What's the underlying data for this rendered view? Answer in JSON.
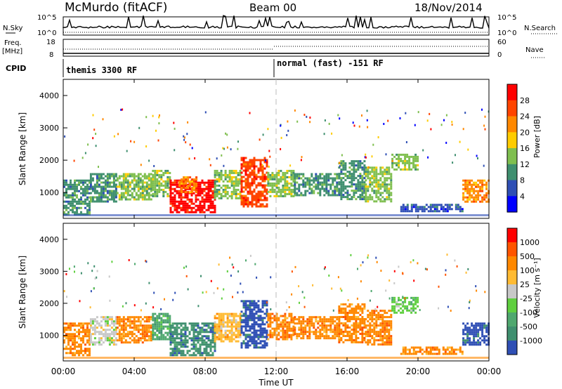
{
  "header": {
    "station": "McMurdo (fitACF)",
    "beam": "Beam 00",
    "date": "18/Nov/2014"
  },
  "top_panels": {
    "nsky_label": "N.Sky",
    "nsky_ticks": [
      "10^5",
      "10^0"
    ],
    "nsearch_label": "N.Search",
    "freq_label": "Freq.",
    "freq_unit": "[MHz]",
    "freq_ticks": [
      "18",
      "8"
    ],
    "nave_label": "Nave",
    "nave_ticks": [
      "60",
      "0"
    ],
    "cpid_label": "CPID",
    "cpid_modes": [
      {
        "label": "themis 3300 RF",
        "start_hour": 0
      },
      {
        "label": "normal (fast) -151 RF",
        "start_hour": 12
      }
    ]
  },
  "colors": {
    "power": [
      "#0000ff",
      "#2f4fb5",
      "#3f8f6f",
      "#7fbf4f",
      "#ffcc00",
      "#ff8800",
      "#ff4400",
      "#ff0000"
    ],
    "velocity": [
      "#2f4fb5",
      "#3f8f6f",
      "#4fa86f",
      "#5fcf3f",
      "#c8c8c8",
      "#ffbb33",
      "#ff8800",
      "#ff5500",
      "#ff0000"
    ]
  },
  "chart_data": [
    {
      "type": "heatmap",
      "name": "power",
      "xlabel": "Time UT",
      "ylabel": "Slant Range [km]",
      "x_ticks": [
        "00:00",
        "04:00",
        "08:00",
        "12:00",
        "16:00",
        "20:00",
        "00:00"
      ],
      "y_ticks": [
        "1000",
        "2000",
        "3000",
        "4000"
      ],
      "xlim": [
        0,
        24
      ],
      "ylim": [
        200,
        4500
      ],
      "colorbar_label": "Power [dB]",
      "colorbar_ticks": [
        "28",
        "24",
        "20",
        "16",
        "12",
        "8",
        "4"
      ],
      "regions": [
        {
          "t0": 0.0,
          "t1": 1.5,
          "r0": 350,
          "r1": 1400,
          "level": 2
        },
        {
          "t0": 1.5,
          "t1": 3.0,
          "r0": 700,
          "r1": 1600,
          "level": 2
        },
        {
          "t0": 3.0,
          "t1": 5.0,
          "r0": 800,
          "r1": 1600,
          "level": 3
        },
        {
          "t0": 5.0,
          "t1": 6.0,
          "r0": 900,
          "r1": 1700,
          "level": 3
        },
        {
          "t0": 6.0,
          "t1": 8.5,
          "r0": 400,
          "r1": 1400,
          "level": 7
        },
        {
          "t0": 6.5,
          "t1": 7.5,
          "r0": 1000,
          "r1": 1500,
          "level": 5
        },
        {
          "t0": 8.5,
          "t1": 10.0,
          "r0": 800,
          "r1": 1700,
          "level": 3
        },
        {
          "t0": 10.0,
          "t1": 11.5,
          "r0": 600,
          "r1": 2100,
          "level": 6
        },
        {
          "t0": 11.5,
          "t1": 13.0,
          "r0": 900,
          "r1": 1700,
          "level": 3
        },
        {
          "t0": 13.0,
          "t1": 15.5,
          "r0": 900,
          "r1": 1600,
          "level": 2
        },
        {
          "t0": 15.5,
          "t1": 17.0,
          "r0": 800,
          "r1": 2000,
          "level": 2
        },
        {
          "t0": 17.0,
          "t1": 18.5,
          "r0": 700,
          "r1": 1800,
          "level": 3
        },
        {
          "t0": 18.5,
          "t1": 20.0,
          "r0": 1700,
          "r1": 2200,
          "level": 3
        },
        {
          "t0": 19.0,
          "t1": 22.5,
          "r0": 450,
          "r1": 650,
          "level": 1
        },
        {
          "t0": 22.5,
          "t1": 24.0,
          "r0": 700,
          "r1": 1400,
          "level": 5
        }
      ]
    },
    {
      "type": "heatmap",
      "name": "velocity",
      "xlabel": "Time UT",
      "ylabel": "Slant Range [km]",
      "x_ticks": [
        "00:00",
        "04:00",
        "08:00",
        "12:00",
        "16:00",
        "20:00",
        "00:00"
      ],
      "y_ticks": [
        "1000",
        "2000",
        "3000",
        "4000"
      ],
      "xlim": [
        0,
        24
      ],
      "ylim": [
        200,
        4500
      ],
      "colorbar_label": "Velocity [m s⁻¹]",
      "colorbar_ticks": [
        "1000",
        "500",
        "100",
        "25",
        "-25",
        "-100",
        "-500",
        "-1000"
      ],
      "regions": [
        {
          "t0": 0.0,
          "t1": 1.5,
          "r0": 350,
          "r1": 1400,
          "level": 6
        },
        {
          "t0": 1.5,
          "t1": 3.0,
          "r0": 700,
          "r1": 1600,
          "level": 4
        },
        {
          "t0": 3.0,
          "t1": 5.0,
          "r0": 800,
          "r1": 1600,
          "level": 6
        },
        {
          "t0": 5.0,
          "t1": 6.0,
          "r0": 900,
          "r1": 1700,
          "level": 2
        },
        {
          "t0": 6.0,
          "t1": 8.5,
          "r0": 400,
          "r1": 1400,
          "level": 1
        },
        {
          "t0": 8.5,
          "t1": 10.0,
          "r0": 800,
          "r1": 1700,
          "level": 5
        },
        {
          "t0": 10.0,
          "t1": 11.5,
          "r0": 600,
          "r1": 2100,
          "level": 0
        },
        {
          "t0": 11.5,
          "t1": 13.0,
          "r0": 900,
          "r1": 1700,
          "level": 6
        },
        {
          "t0": 13.0,
          "t1": 15.5,
          "r0": 900,
          "r1": 1600,
          "level": 6
        },
        {
          "t0": 15.5,
          "t1": 17.0,
          "r0": 800,
          "r1": 2000,
          "level": 6
        },
        {
          "t0": 17.0,
          "t1": 18.5,
          "r0": 700,
          "r1": 1800,
          "level": 6
        },
        {
          "t0": 18.5,
          "t1": 20.0,
          "r0": 1700,
          "r1": 2200,
          "level": 3
        },
        {
          "t0": 19.0,
          "t1": 22.5,
          "r0": 450,
          "r1": 650,
          "level": 6
        },
        {
          "t0": 22.5,
          "t1": 24.0,
          "r0": 700,
          "r1": 1400,
          "level": 0
        }
      ]
    }
  ]
}
